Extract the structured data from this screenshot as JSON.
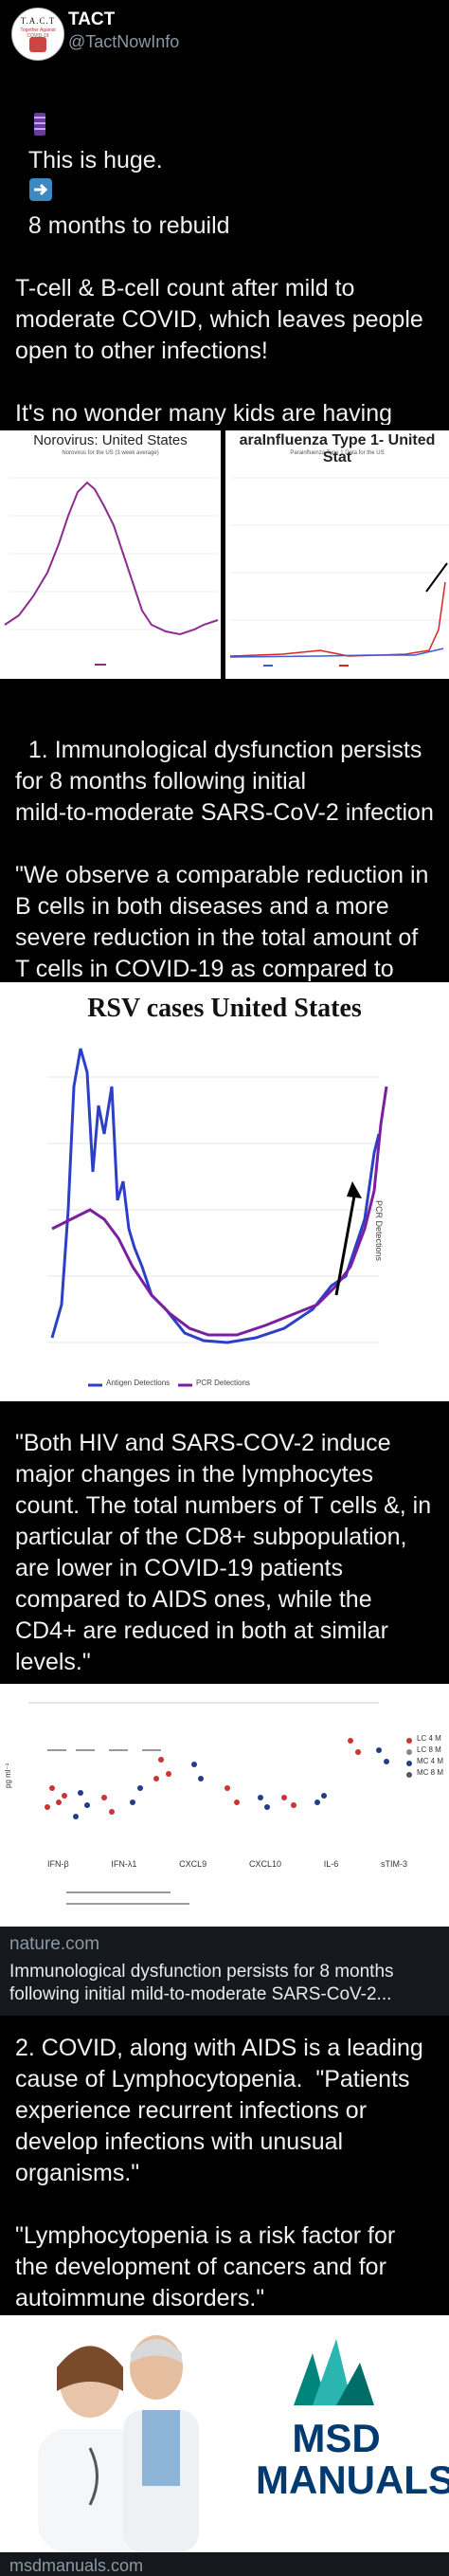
{
  "author": {
    "name": "TACT",
    "handle": "@TactNowInfo",
    "avatar_text_top": "T.A.C.T",
    "avatar_text_sub": "Together Against COVID-19"
  },
  "tweet1": {
    "line1": "This is huge.",
    "line1b": "8 months to rebuild",
    "rest": "T-cell & B-cell count after mild to\nmoderate COVID, which leaves people\nopen to other infections!\n\nIt's no wonder many kids are having\nmore severe symptoms.\n\nThese viruses are spreading at an\nexponential rate with unmitigated\nschools."
  },
  "images": {
    "norovirus_title": "Norovirus: United States",
    "norovirus_subtitle": "Norovirus for the US (3 week average)",
    "parainfluenza_title": "araInfluenza Type 1- United Stat",
    "parainfluenza_subtitle": "Parainfluenza Type 1 Data for the US",
    "rsv_title": "RSV cases  United States",
    "rsv_legend_antigen": "Antigen Detections",
    "rsv_legend_pcr": "PCR Detections",
    "rsv_ylabel": "PCR Detections"
  },
  "tweet2": {
    "text": "1. Immunological dysfunction persists\nfor 8 months following initial\nmild-to-moderate SARS-CoV-2 infection\n\n\"We observe a comparable reduction in\nB cells in both diseases and a more\nsevere reduction in the total amount of\nT cells in COVID-19 as compared to\nAIDS patients.\""
  },
  "tweet3": {
    "text": "\"Both HIV and SARS-COV-2 induce\nmajor changes in the lymphocytes\ncount. The total numbers of T cells &, in\nparticular of the CD8+ subpopulation,\nare lower in COVID-19 patients\ncompared to AIDS ones, while the\nCD4+ are reduced in both at similar\nlevels.\""
  },
  "link_card": {
    "domain": "nature.com",
    "title": "Immunological dysfunction persists for 8 months following initial mild-to-moderate SARS-CoV-2...",
    "figure_labels": [
      "IFN-β",
      "IFN-λ1",
      "CXCL9",
      "CXCL10",
      "IL-6",
      "sTIM-3"
    ],
    "legend": [
      "LC 4 M",
      "LC 8 M",
      "MC 4 M",
      "MC 8 M"
    ],
    "y_unit": "pg ml⁻¹"
  },
  "tweet4": {
    "text": "2. COVID, along with AIDS is a leading\ncause of Lymphocytopenia.  \"Patients\nexperience recurrent infections or\ndevelop infections with unusual\norganisms.\"\n\n\"Lymphocytopenia is a risk factor for\nthe development of cancers and for\nautoimmune disorders.\""
  },
  "msd": {
    "line1": "MSD",
    "line2": "MANUALS"
  },
  "bottom_domain": "msdmanuals.com",
  "colors": {
    "bg": "#000000",
    "text": "#f1f1f1",
    "muted": "#8b98a5",
    "card": "#15181c",
    "blue": "#2b3fc7",
    "purple": "#7b1fa2",
    "msd_teal": "#00857c",
    "msd_navy": "#003a70"
  }
}
